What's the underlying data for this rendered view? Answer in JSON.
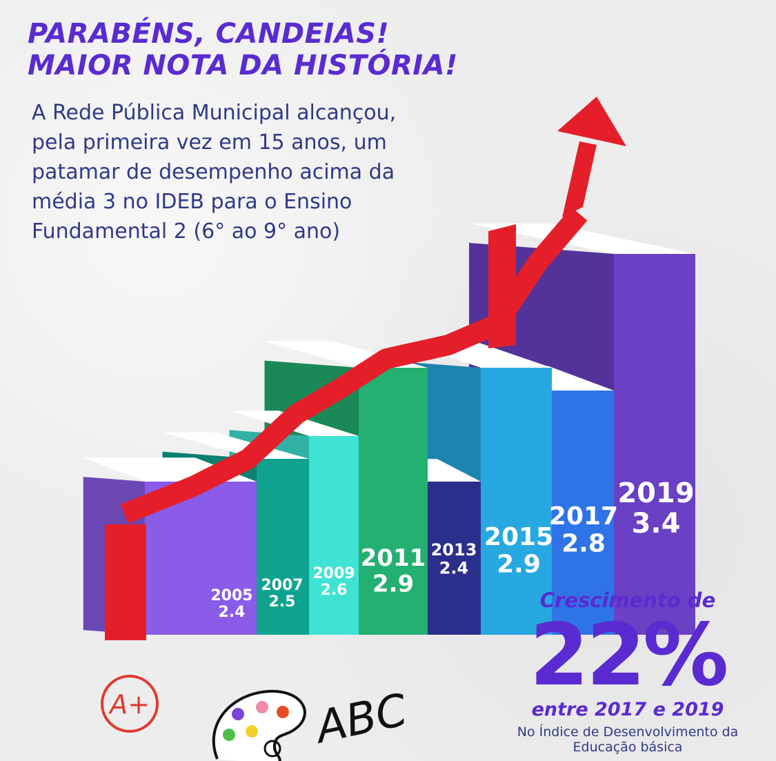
{
  "headline": {
    "line1": "PARABÉNS, CANDEIAS!",
    "line2": "MAIOR NOTA DA HISTÓRIA!"
  },
  "intro": "A Rede Pública Municipal alcançou, pela primeira vez em 15 anos, um patamar de desempenho acima da média 3 no IDEB para o Ensino Fundamental 2 (6° ao 9° ano)",
  "growth": {
    "label": "Crescimento de",
    "value": "22%",
    "period": "entre 2017 e 2019",
    "index_name": "No Índice de Desenvolvimento da Educação básica"
  },
  "icons": [
    "a-plus-grade-icon",
    "paint-palette-icon",
    "abc-handwriting-icon",
    "up-arrow-icon"
  ],
  "doodle_text": {
    "grade": "A+",
    "letters": "ABC"
  },
  "chart_data": {
    "type": "bar",
    "title": "",
    "xlabel": "",
    "ylabel": "",
    "categories": [
      "2005",
      "2007",
      "2009",
      "2011",
      "2013",
      "2015",
      "2017",
      "2019"
    ],
    "values": [
      2.4,
      2.5,
      2.6,
      2.9,
      2.4,
      2.9,
      2.8,
      3.4
    ],
    "value_labels": [
      "2.4",
      "2.5",
      "2.6",
      "2.9",
      "2.4",
      "2.9",
      "2.8",
      "3.4"
    ],
    "colors": [
      "#8a5ce8",
      "#0fa38f",
      "#3fe3d4",
      "#23b070",
      "#2b2f8c",
      "#28a8e0",
      "#2f74e6",
      "#6a40c4"
    ],
    "ribbon_color": "#e41f2a",
    "arrow_color": "#e41f2a",
    "grid": false,
    "legend": "none"
  }
}
